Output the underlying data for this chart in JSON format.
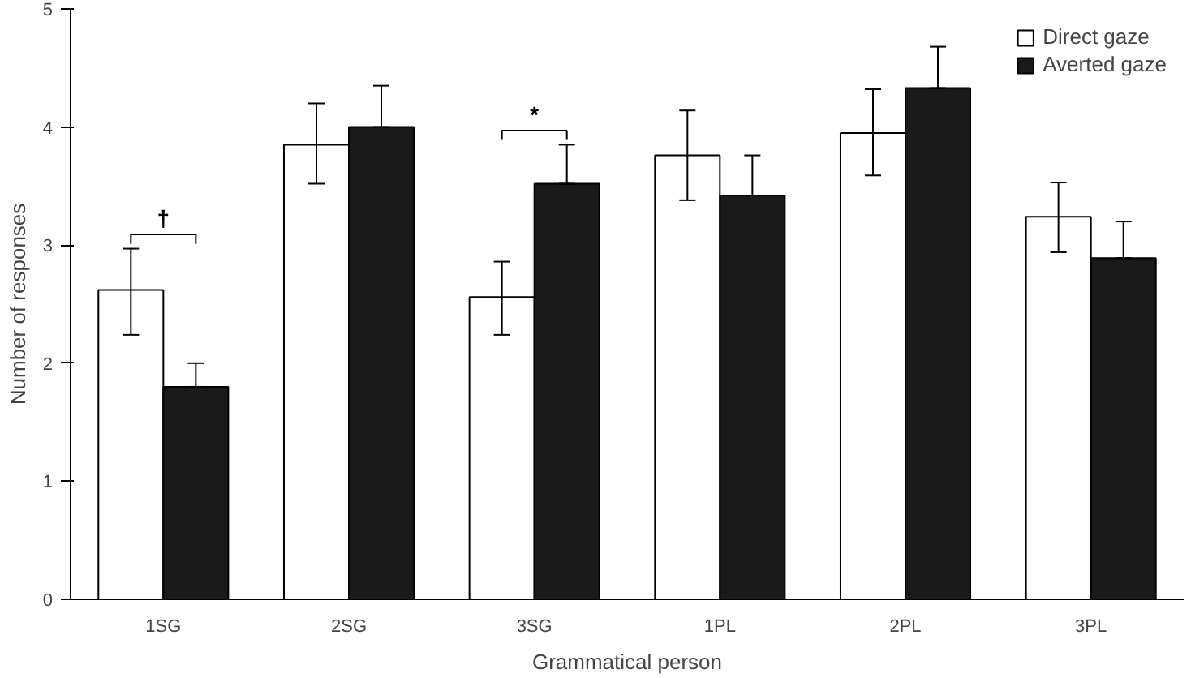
{
  "chart_data": {
    "type": "bar",
    "xlabel": "Grammatical person",
    "ylabel": "Number of responses",
    "categories": [
      "1SG",
      "2SG",
      "3SG",
      "1PL",
      "2PL",
      "3PL"
    ],
    "series": [
      {
        "name": "Direct gaze",
        "color": "#ffffff",
        "values": [
          2.62,
          3.85,
          2.56,
          3.76,
          3.95,
          3.24
        ],
        "errors": [
          [
            2.24,
            2.97
          ],
          [
            3.52,
            4.2
          ],
          [
            2.24,
            2.86
          ],
          [
            3.38,
            4.14
          ],
          [
            3.59,
            4.32
          ],
          [
            2.94,
            3.53
          ]
        ]
      },
      {
        "name": "Averted gaze",
        "color": "#1a1a1a",
        "values": [
          1.8,
          4.0,
          3.52,
          3.42,
          4.33,
          2.89
        ],
        "errors": [
          [
            1.8,
            2.0
          ],
          [
            4.0,
            4.35
          ],
          [
            3.52,
            3.85
          ],
          [
            3.42,
            3.76
          ],
          [
            4.33,
            4.68
          ],
          [
            2.89,
            3.2
          ]
        ]
      }
    ],
    "ylim": [
      0,
      5
    ],
    "yticks": [
      0,
      1,
      2,
      3,
      4,
      5
    ],
    "grid": false,
    "legend": "top right",
    "annotations": [
      "†",
      "*"
    ]
  }
}
